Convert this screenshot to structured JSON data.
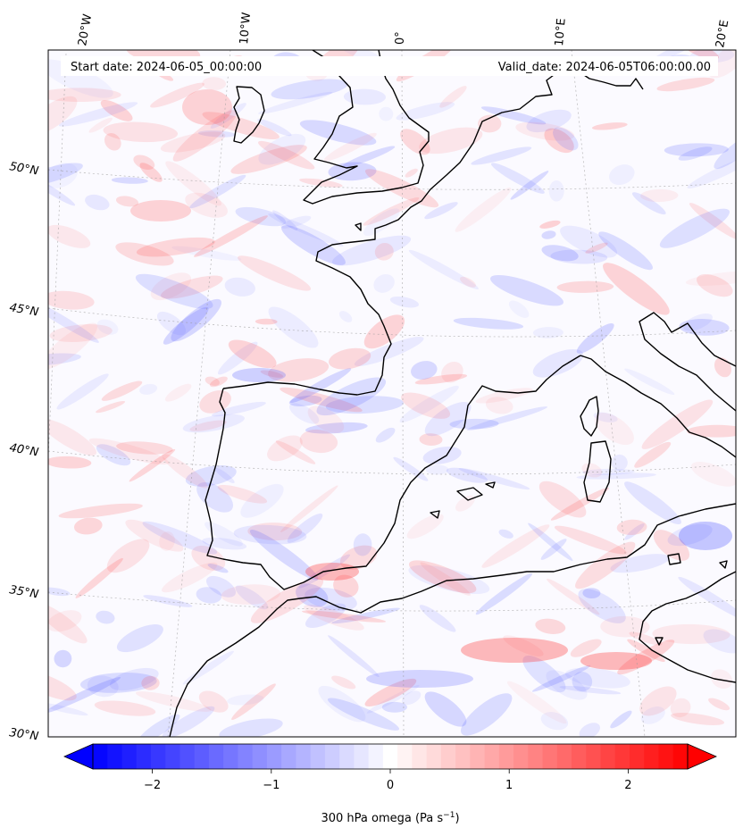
{
  "map": {
    "start_date_text": "Start date: 2024-06-05_00:00:00",
    "valid_date_text": "Valid_date: 2024-06-05T06:00:00.00",
    "lon_labels": [
      "20°W",
      "10°W",
      "0°",
      "10°E",
      "20°E"
    ],
    "lat_labels": [
      "50°N",
      "45°N",
      "40°N",
      "35°N",
      "30°N"
    ],
    "extent": {
      "lon": [
        -22,
        22
      ],
      "lat": [
        30,
        54
      ]
    },
    "variable": "300 hPa omega",
    "colormap": "bwr",
    "coastline_color": "#000000",
    "gridline_style": "dotted-gray"
  },
  "colorbar": {
    "label_main": "300 hPa omega (Pa s",
    "label_sup": "−1",
    "label_close": ")",
    "ticks": [
      "−2",
      "−1",
      "0",
      "1",
      "2"
    ],
    "tick_values": [
      -2,
      -1,
      0,
      1,
      2
    ],
    "range": [
      -2.5,
      2.5
    ],
    "levels": 41,
    "extend": "both",
    "colors": {
      "min": "#0000ff",
      "mid": "#ffffff",
      "max": "#ff0000"
    }
  }
}
